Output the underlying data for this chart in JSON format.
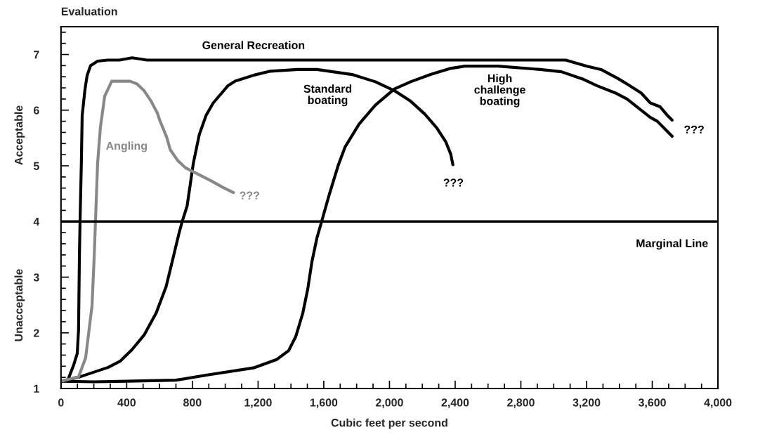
{
  "chart_data": {
    "type": "line",
    "ylabel": "Evaluation",
    "xlabel": "Cubic feet per second",
    "xlim": [
      0,
      4000
    ],
    "ylim": [
      1,
      7.5
    ],
    "xticks": [
      0,
      {
        "value": 100,
        "label": null
      },
      {
        "value": 200,
        "label": null
      },
      {
        "value": 300,
        "label": null
      },
      400,
      {
        "value": 500,
        "label": null
      },
      {
        "value": 600,
        "label": null
      },
      {
        "value": 700,
        "label": null
      },
      800,
      {
        "value": 900,
        "label": null
      },
      {
        "value": 1000,
        "label": null
      },
      {
        "value": 1100,
        "label": null
      },
      {
        "value": 1200,
        "label": "1,200"
      },
      {
        "value": 1300,
        "label": null
      },
      {
        "value": 1400,
        "label": null
      },
      {
        "value": 1500,
        "label": null
      },
      {
        "value": 1600,
        "label": "1,600"
      },
      {
        "value": 1700,
        "label": null
      },
      {
        "value": 1800,
        "label": null
      },
      {
        "value": 1900,
        "label": null
      },
      {
        "value": 2000,
        "label": "2,000"
      },
      {
        "value": 2100,
        "label": null
      },
      {
        "value": 2200,
        "label": null
      },
      {
        "value": 2300,
        "label": null
      },
      {
        "value": 2400,
        "label": "2,400"
      },
      {
        "value": 2500,
        "label": null
      },
      {
        "value": 2600,
        "label": null
      },
      {
        "value": 2700,
        "label": null
      },
      {
        "value": 2800,
        "label": "2,800"
      },
      {
        "value": 2900,
        "label": null
      },
      {
        "value": 3000,
        "label": null
      },
      {
        "value": 3100,
        "label": null
      },
      {
        "value": 3200,
        "label": "3,200"
      },
      {
        "value": 3300,
        "label": null
      },
      {
        "value": 3400,
        "label": null
      },
      {
        "value": 3500,
        "label": null
      },
      {
        "value": 3600,
        "label": "3,600"
      },
      {
        "value": 3700,
        "label": null
      },
      {
        "value": 3800,
        "label": null
      },
      {
        "value": 3900,
        "label": null
      },
      {
        "value": 4000,
        "label": "4,000"
      }
    ],
    "yticks": [
      1,
      {
        "value": 1.2,
        "label": null
      },
      {
        "value": 1.4,
        "label": null
      },
      {
        "value": 1.6,
        "label": null
      },
      {
        "value": 1.8,
        "label": null
      },
      2,
      {
        "value": 2.2,
        "label": null
      },
      {
        "value": 2.4,
        "label": null
      },
      {
        "value": 2.6,
        "label": null
      },
      {
        "value": 2.8,
        "label": null
      },
      3,
      {
        "value": 3.2,
        "label": null
      },
      {
        "value": 3.4,
        "label": null
      },
      {
        "value": 3.6,
        "label": null
      },
      {
        "value": 3.8,
        "label": null
      },
      4,
      {
        "value": 4.2,
        "label": null
      },
      {
        "value": 4.4,
        "label": null
      },
      {
        "value": 4.6,
        "label": null
      },
      {
        "value": 4.8,
        "label": null
      },
      5,
      {
        "value": 5.2,
        "label": null
      },
      {
        "value": 5.4,
        "label": null
      },
      {
        "value": 5.6,
        "label": null
      },
      {
        "value": 5.8,
        "label": null
      },
      6,
      {
        "value": 6.2,
        "label": null
      },
      {
        "value": 6.4,
        "label": null
      },
      {
        "value": 6.6,
        "label": null
      },
      {
        "value": 6.8,
        "label": null
      },
      7,
      {
        "value": 7.2,
        "label": null
      },
      {
        "value": 7.4,
        "label": null
      }
    ],
    "grid": false,
    "legend": false,
    "marker": "none",
    "line_style": "solid",
    "series": [
      {
        "name": "General Recreation",
        "color": "#000000",
        "x": [
          0,
          43,
          77,
          99,
          107,
          112,
          116,
          124,
          129,
          146,
          159,
          180,
          223,
          283,
          356,
          433,
          524,
          1000,
          2000,
          3073,
          3202,
          3288,
          3390,
          3446,
          3532,
          3588,
          3648,
          3691,
          3721
        ],
        "values": [
          1.13,
          1.16,
          1.42,
          1.63,
          2.06,
          3.35,
          4.0,
          5.05,
          5.9,
          6.37,
          6.62,
          6.8,
          6.88,
          6.9,
          6.9,
          6.94,
          6.9,
          6.9,
          6.9,
          6.9,
          6.79,
          6.73,
          6.57,
          6.47,
          6.31,
          6.13,
          6.06,
          5.91,
          5.82
        ]
      },
      {
        "name": "Standard boating",
        "color": "#000000",
        "x": [
          0,
          115,
          288,
          360,
          433,
          506,
          580,
          640,
          683,
          717,
          738,
          768,
          806,
          842,
          884,
          927,
          1017,
          1060,
          1176,
          1275,
          1442,
          1558,
          1773,
          1914,
          2030,
          2129,
          2215,
          2288,
          2343,
          2373,
          2386
        ],
        "values": [
          1.13,
          1.21,
          1.38,
          1.49,
          1.7,
          1.96,
          2.36,
          2.83,
          3.35,
          3.77,
          4.0,
          4.28,
          5.05,
          5.56,
          5.91,
          6.13,
          6.44,
          6.52,
          6.63,
          6.7,
          6.73,
          6.73,
          6.64,
          6.51,
          6.35,
          6.16,
          5.93,
          5.68,
          5.43,
          5.21,
          5.02
        ]
      },
      {
        "name": "High challenge boating",
        "color": "#000000",
        "x": [
          0,
          200,
          400,
          700,
          884,
          1172,
          1313,
          1386,
          1429,
          1472,
          1502,
          1528,
          1558,
          1588,
          1631,
          1687,
          1730,
          1815,
          1914,
          2030,
          2129,
          2250,
          2373,
          2459,
          2661,
          2918,
          3047,
          3176,
          3262,
          3374,
          3446,
          3545,
          3588,
          3631,
          3721
        ],
        "values": [
          1.13,
          1.12,
          1.13,
          1.15,
          1.24,
          1.37,
          1.52,
          1.68,
          1.93,
          2.35,
          2.78,
          3.28,
          3.7,
          4.01,
          4.46,
          5.0,
          5.34,
          5.75,
          6.09,
          6.38,
          6.51,
          6.64,
          6.75,
          6.79,
          6.79,
          6.73,
          6.69,
          6.56,
          6.44,
          6.31,
          6.2,
          5.97,
          5.87,
          5.8,
          5.53
        ]
      },
      {
        "name": "Angling",
        "color": "#888888",
        "x": [
          0,
          107,
          150,
          189,
          202,
          210,
          223,
          240,
          266,
          309,
          421,
          463,
          506,
          549,
          588,
          601,
          644,
          665,
          712,
          760,
          828,
          914,
          987,
          1050
        ],
        "values": [
          1.13,
          1.21,
          1.55,
          2.49,
          3.35,
          4.0,
          5.05,
          5.69,
          6.25,
          6.52,
          6.52,
          6.47,
          6.35,
          6.16,
          5.94,
          5.82,
          5.51,
          5.29,
          5.09,
          4.96,
          4.86,
          4.73,
          4.61,
          4.52
        ]
      }
    ],
    "ref_lines": [
      {
        "axis": "y",
        "value": 4,
        "label": "Marginal Line",
        "color": "#000000"
      }
    ],
    "annotations": [
      "Acceptable",
      "Unacceptable",
      {
        "text": "???",
        "x": 2386,
        "y": 5.02
      },
      {
        "text": "???",
        "x": 3721,
        "y": 5.53
      },
      {
        "text": "???",
        "x": 1050,
        "y": 4.52
      }
    ]
  }
}
